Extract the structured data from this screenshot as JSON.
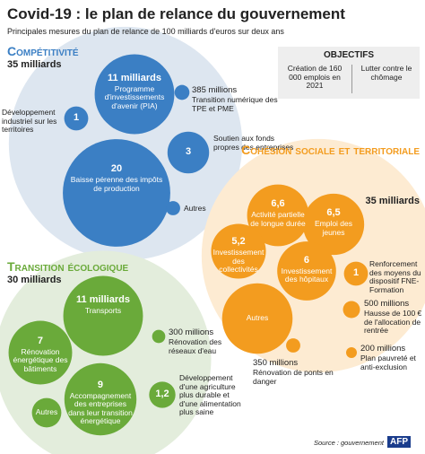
{
  "header": {
    "title": "Covid-19 : le plan de relance du gouvernement",
    "subtitle": "Principales mesures du plan de relance de 100 milliards d'euros sur deux ans"
  },
  "objectives": {
    "title": "OBJECTIFS",
    "items": [
      "Création de 160 000 emplois en 2021",
      "Lutter contre le chômage"
    ]
  },
  "chart_data": {
    "type": "bubble",
    "groups": [
      {
        "name": "Compétitivité",
        "color": "#3b7fc4",
        "background": "#dde6f0",
        "total": 35,
        "total_label": "35 milliards",
        "items": [
          {
            "value": 11,
            "value_label": "11 milliards",
            "label": "Programme d'investissements d'avenir (PIA)"
          },
          {
            "value": 0.385,
            "value_label": "385 millions",
            "label": "Transition numérique des TPE et PME"
          },
          {
            "value": 1,
            "label": "Développement industriel sur les territoires"
          },
          {
            "value": 3,
            "label": "Soutien aux fonds propres des entreprises"
          },
          {
            "value": 20,
            "label": "Baisse pérenne des impôts de production"
          },
          {
            "value": 0.35,
            "label": "Autres"
          }
        ]
      },
      {
        "name": "Cohésion sociale et territoriale",
        "color": "#f39c1f",
        "background": "#fdebd2",
        "total": 35,
        "total_label": "35 milliards",
        "items": [
          {
            "value": 6.6,
            "value_label": "6,6",
            "label": "Activité partielle de longue durée"
          },
          {
            "value": 6.5,
            "value_label": "6,5",
            "label": "Emploi des jeunes"
          },
          {
            "value": 5.2,
            "value_label": "5,2",
            "label": "Investissement des collectivités"
          },
          {
            "value": 6,
            "label": "Investissement des hôpitaux"
          },
          {
            "value": 1,
            "label": "Renforcement des moyens du dispositif FNE-Formation"
          },
          {
            "value": 8.6,
            "label": "Autres"
          },
          {
            "value": 0.5,
            "value_label": "500 millions",
            "label": "Hausse de 100 € de l'allocation de rentrée"
          },
          {
            "value": 0.2,
            "value_label": "200 millions",
            "label": "Plan pauvreté et anti-exclusion"
          },
          {
            "value": 0.35,
            "value_label": "350 millions",
            "label": "Rénovation de ponts en danger"
          }
        ]
      },
      {
        "name": "Transition écologique",
        "color": "#6aaa3a",
        "background": "#e3eddc",
        "total": 30,
        "total_label": "30 milliards",
        "items": [
          {
            "value": 11,
            "value_label": "11 milliards",
            "label": "Transports"
          },
          {
            "value": 7,
            "label": "Rénovation énergétique des bâtiments"
          },
          {
            "value": 9,
            "label": "Accompagnement des entreprises dans leur transition énergétique"
          },
          {
            "value": 1.5,
            "label": "Autres"
          },
          {
            "value": 0.3,
            "value_label": "300 millions",
            "label": "Rénovation des réseaux d'eau"
          },
          {
            "value": 1.2,
            "value_label": "1,2",
            "label": "Développement d'une agriculture plus durable et d'une alimentation plus saine"
          }
        ]
      }
    ]
  },
  "source": "Source : gouvernement",
  "logo": "AFP"
}
